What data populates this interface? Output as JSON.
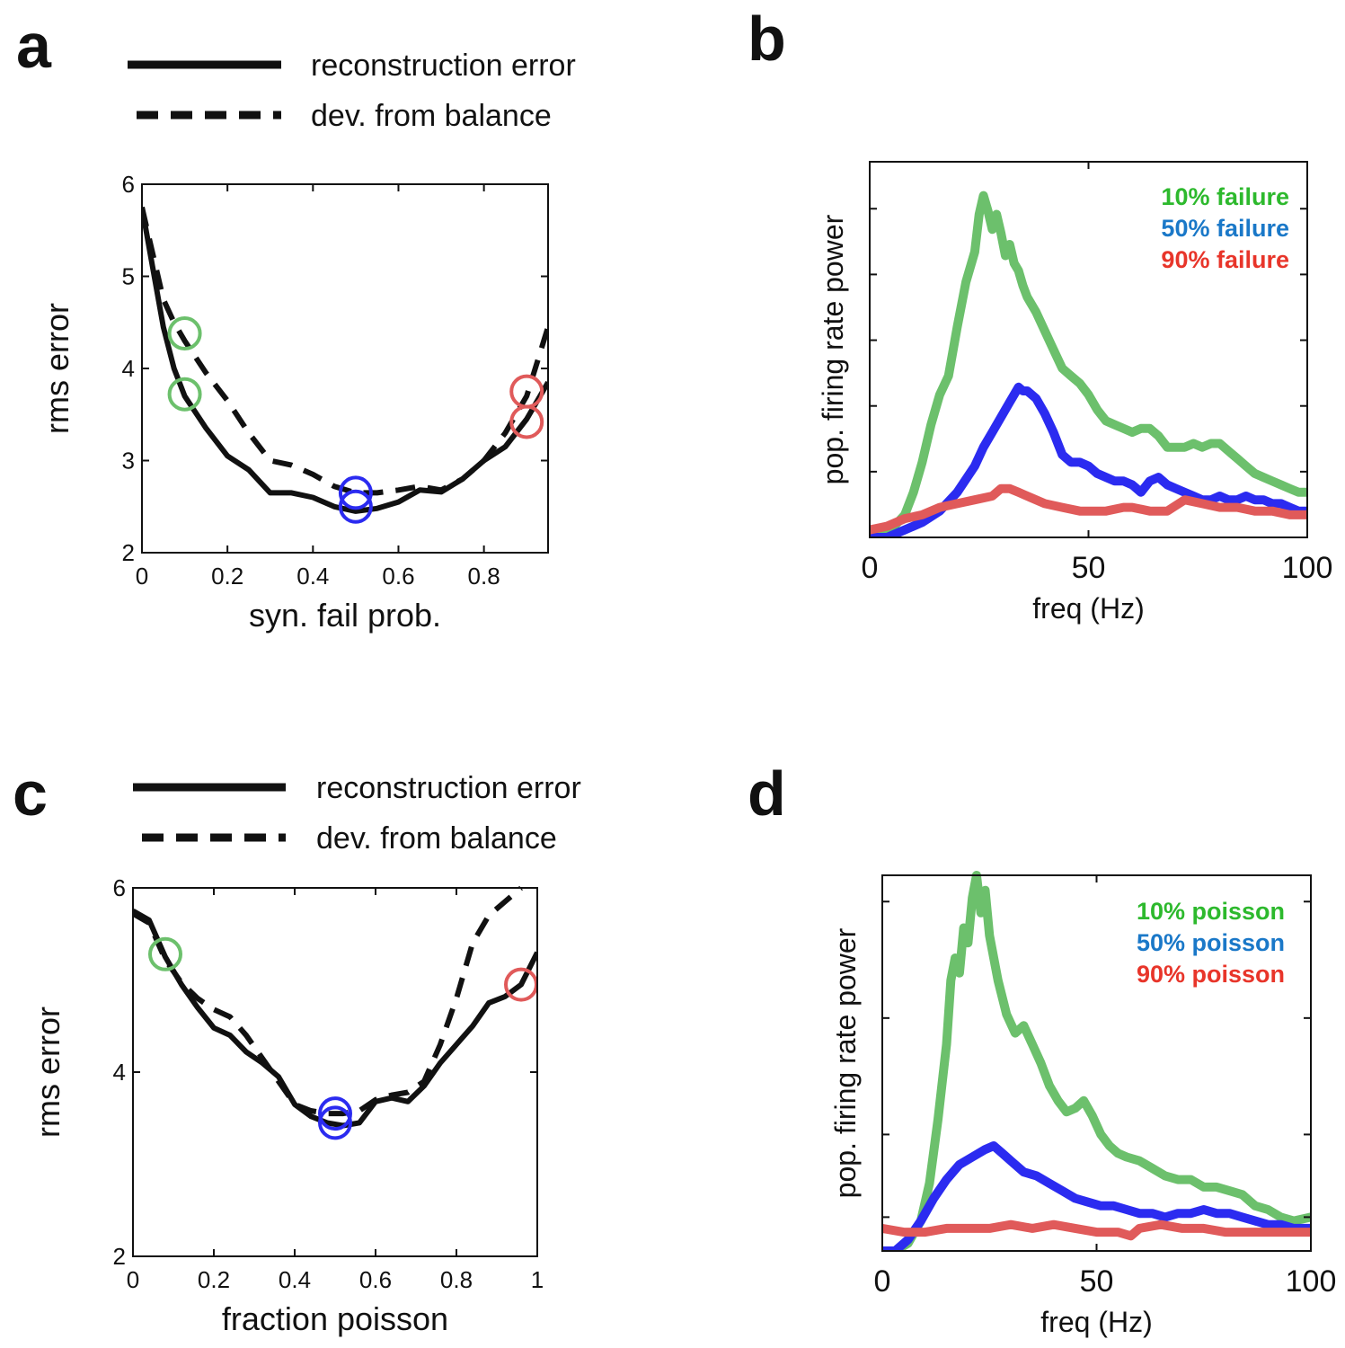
{
  "figure": {
    "panel_labels": [
      "a",
      "b",
      "c",
      "d"
    ],
    "colors": {
      "green": "#6cc06c",
      "blue": "#2b2bf0",
      "red": "#e05a5a",
      "black": "#111111",
      "legend_green": "#2db92d",
      "legend_blue": "#1a78c8",
      "legend_red": "#e8352a"
    }
  },
  "chart_data": [
    {
      "panel": "a",
      "type": "line",
      "xlabel": "syn. fail prob.",
      "ylabel": "rms error",
      "xlim": [
        0,
        0.95
      ],
      "ylim": [
        2,
        6
      ],
      "xticks": [
        0,
        0.2,
        0.4,
        0.6,
        0.8
      ],
      "xtick_labels": [
        "0",
        "0.2",
        "0.4",
        "0.6",
        "0.8"
      ],
      "yticks": [
        2,
        3,
        4,
        5,
        6
      ],
      "ytick_labels": [
        "2",
        "3",
        "4",
        "5",
        "6"
      ],
      "legend": [
        {
          "label": "reconstruction error",
          "style": "solid"
        },
        {
          "label": "dev. from balance",
          "style": "dashed"
        }
      ],
      "series": [
        {
          "name": "reconstruction error",
          "style": "solid",
          "x": [
            0,
            0.025,
            0.05,
            0.075,
            0.1,
            0.15,
            0.2,
            0.25,
            0.3,
            0.35,
            0.4,
            0.45,
            0.5,
            0.55,
            0.6,
            0.65,
            0.7,
            0.75,
            0.8,
            0.85,
            0.9,
            0.95
          ],
          "y": [
            5.75,
            5.1,
            4.45,
            4.0,
            3.7,
            3.35,
            3.05,
            2.9,
            2.65,
            2.65,
            2.6,
            2.5,
            2.45,
            2.48,
            2.55,
            2.68,
            2.66,
            2.8,
            3.0,
            3.15,
            3.45,
            3.85
          ]
        },
        {
          "name": "dev. from balance",
          "style": "dashed",
          "x": [
            0,
            0.025,
            0.05,
            0.075,
            0.1,
            0.15,
            0.2,
            0.25,
            0.3,
            0.35,
            0.4,
            0.45,
            0.5,
            0.55,
            0.6,
            0.65,
            0.7,
            0.75,
            0.8,
            0.85,
            0.9,
            0.95
          ],
          "y": [
            5.75,
            5.25,
            4.75,
            4.5,
            4.3,
            3.95,
            3.65,
            3.3,
            3.0,
            2.95,
            2.85,
            2.72,
            2.65,
            2.65,
            2.68,
            2.72,
            2.68,
            2.8,
            3.0,
            3.3,
            3.7,
            4.45
          ]
        }
      ],
      "markers": [
        {
          "x": 0.1,
          "y": 4.38,
          "color": "green"
        },
        {
          "x": 0.1,
          "y": 3.72,
          "color": "green"
        },
        {
          "x": 0.5,
          "y": 2.65,
          "color": "blue"
        },
        {
          "x": 0.5,
          "y": 2.5,
          "color": "blue"
        },
        {
          "x": 0.9,
          "y": 3.75,
          "color": "red"
        },
        {
          "x": 0.9,
          "y": 3.42,
          "color": "red"
        }
      ]
    },
    {
      "panel": "b",
      "type": "line",
      "xlabel": "freq (Hz)",
      "ylabel": "pop. firing rate power",
      "xlim": [
        0,
        100
      ],
      "ylim": [
        0,
        1
      ],
      "xticks": [
        0,
        50,
        100
      ],
      "xtick_labels": [
        "0",
        "50",
        "100"
      ],
      "yticks": [
        0.175,
        0.35,
        0.525,
        0.7,
        0.875
      ],
      "ytick_labels": [],
      "legend": [
        {
          "label": "10% failure",
          "color": "legend_green"
        },
        {
          "label": "50% failure",
          "color": "legend_blue"
        },
        {
          "label": "90% failure",
          "color": "legend_red"
        }
      ],
      "series": [
        {
          "name": "10% failure",
          "color": "green",
          "x": [
            0,
            4,
            8,
            10,
            12,
            14,
            16,
            18,
            20,
            22,
            24,
            25,
            26,
            27,
            28,
            29,
            30,
            31,
            32,
            33,
            34,
            35,
            36,
            38,
            40,
            42,
            44,
            46,
            48,
            50,
            52,
            54,
            56,
            58,
            60,
            62,
            64,
            66,
            68,
            70,
            72,
            74,
            76,
            78,
            80,
            82,
            84,
            86,
            88,
            90,
            92,
            94,
            96,
            98,
            100
          ],
          "y": [
            0.0,
            0.01,
            0.06,
            0.12,
            0.2,
            0.3,
            0.38,
            0.43,
            0.56,
            0.68,
            0.76,
            0.86,
            0.91,
            0.87,
            0.82,
            0.86,
            0.81,
            0.75,
            0.78,
            0.73,
            0.71,
            0.67,
            0.64,
            0.6,
            0.55,
            0.5,
            0.45,
            0.43,
            0.41,
            0.38,
            0.34,
            0.31,
            0.3,
            0.29,
            0.28,
            0.29,
            0.29,
            0.27,
            0.24,
            0.24,
            0.24,
            0.25,
            0.24,
            0.25,
            0.25,
            0.23,
            0.21,
            0.19,
            0.17,
            0.16,
            0.15,
            0.14,
            0.13,
            0.12,
            0.12
          ]
        },
        {
          "name": "50% failure",
          "color": "blue",
          "x": [
            0,
            4,
            8,
            12,
            16,
            20,
            24,
            26,
            28,
            30,
            32,
            33,
            34,
            35,
            36,
            38,
            40,
            42,
            44,
            46,
            48,
            50,
            52,
            54,
            56,
            58,
            60,
            62,
            64,
            66,
            68,
            70,
            72,
            74,
            76,
            78,
            80,
            82,
            84,
            86,
            88,
            90,
            92,
            94,
            96,
            98,
            100
          ],
          "y": [
            0.0,
            0.0,
            0.02,
            0.04,
            0.07,
            0.12,
            0.19,
            0.24,
            0.28,
            0.32,
            0.36,
            0.38,
            0.4,
            0.39,
            0.39,
            0.37,
            0.33,
            0.28,
            0.22,
            0.2,
            0.2,
            0.19,
            0.17,
            0.16,
            0.15,
            0.15,
            0.14,
            0.12,
            0.15,
            0.16,
            0.14,
            0.13,
            0.12,
            0.11,
            0.1,
            0.1,
            0.11,
            0.1,
            0.1,
            0.11,
            0.1,
            0.1,
            0.09,
            0.09,
            0.08,
            0.07,
            0.07
          ]
        },
        {
          "name": "90% failure",
          "color": "red",
          "x": [
            0,
            4,
            8,
            12,
            16,
            20,
            24,
            28,
            30,
            32,
            34,
            36,
            40,
            44,
            48,
            50,
            54,
            58,
            60,
            64,
            68,
            72,
            76,
            80,
            84,
            88,
            92,
            96,
            100
          ],
          "y": [
            0.02,
            0.03,
            0.05,
            0.06,
            0.08,
            0.09,
            0.1,
            0.11,
            0.13,
            0.13,
            0.12,
            0.11,
            0.09,
            0.08,
            0.07,
            0.07,
            0.07,
            0.08,
            0.08,
            0.07,
            0.07,
            0.1,
            0.09,
            0.08,
            0.08,
            0.07,
            0.07,
            0.06,
            0.06
          ]
        }
      ]
    },
    {
      "panel": "c",
      "type": "line",
      "xlabel": "fraction poisson",
      "ylabel": "rms error",
      "xlim": [
        0,
        1
      ],
      "ylim": [
        2,
        6
      ],
      "xticks": [
        0,
        0.2,
        0.4,
        0.6,
        0.8,
        1
      ],
      "xtick_labels": [
        "0",
        "0.2",
        "0.4",
        "0.6",
        "0.8",
        "1"
      ],
      "yticks": [
        2,
        4,
        6
      ],
      "ytick_labels": [
        "2",
        "4",
        "6"
      ],
      "legend": [
        {
          "label": "reconstruction error",
          "style": "solid"
        },
        {
          "label": "dev. from balance",
          "style": "dashed"
        }
      ],
      "series": [
        {
          "name": "reconstruction error",
          "style": "solid",
          "x": [
            0,
            0.04,
            0.08,
            0.12,
            0.16,
            0.2,
            0.24,
            0.28,
            0.32,
            0.36,
            0.4,
            0.44,
            0.48,
            0.52,
            0.56,
            0.6,
            0.64,
            0.68,
            0.72,
            0.76,
            0.8,
            0.84,
            0.88,
            0.92,
            0.96,
            1.0
          ],
          "y": [
            5.75,
            5.65,
            5.25,
            4.95,
            4.7,
            4.48,
            4.4,
            4.22,
            4.1,
            3.95,
            3.65,
            3.52,
            3.45,
            3.42,
            3.45,
            3.68,
            3.72,
            3.68,
            3.85,
            4.1,
            4.3,
            4.5,
            4.75,
            4.82,
            4.95,
            5.3
          ]
        },
        {
          "name": "dev. from balance",
          "style": "dashed",
          "x": [
            0,
            0.04,
            0.08,
            0.12,
            0.16,
            0.2,
            0.24,
            0.28,
            0.32,
            0.36,
            0.4,
            0.44,
            0.48,
            0.52,
            0.56,
            0.6,
            0.64,
            0.68,
            0.72,
            0.76,
            0.8,
            0.84,
            0.88,
            0.92,
            0.96
          ],
          "y": [
            5.72,
            5.62,
            5.22,
            4.97,
            4.8,
            4.68,
            4.6,
            4.4,
            4.15,
            3.9,
            3.65,
            3.58,
            3.55,
            3.55,
            3.58,
            3.7,
            3.75,
            3.78,
            3.9,
            4.3,
            4.8,
            5.4,
            5.7,
            5.85,
            6.0
          ]
        }
      ],
      "markers": [
        {
          "x": 0.08,
          "y": 5.28,
          "color": "green"
        },
        {
          "x": 0.5,
          "y": 3.55,
          "color": "blue"
        },
        {
          "x": 0.5,
          "y": 3.45,
          "color": "blue"
        },
        {
          "x": 0.96,
          "y": 4.95,
          "color": "red"
        }
      ]
    },
    {
      "panel": "d",
      "type": "line",
      "xlabel": "freq (Hz)",
      "ylabel": "pop. firing rate power",
      "xlim": [
        0,
        100
      ],
      "ylim": [
        0,
        1
      ],
      "xticks": [
        0,
        50,
        100
      ],
      "xtick_labels": [
        "0",
        "50",
        "100"
      ],
      "yticks": [
        0.09,
        0.31,
        0.62,
        0.93
      ],
      "ytick_labels": [],
      "legend": [
        {
          "label": "10% poisson",
          "color": "legend_green"
        },
        {
          "label": "50% poisson",
          "color": "legend_blue"
        },
        {
          "label": "90% poisson",
          "color": "legend_red"
        }
      ],
      "series": [
        {
          "name": "10% poisson",
          "color": "green",
          "x": [
            0,
            3,
            6,
            9,
            11,
            13,
            15,
            16,
            17,
            18,
            19,
            20,
            21,
            22,
            23,
            24,
            25,
            27,
            29,
            31,
            33,
            35,
            37,
            39,
            41,
            43,
            45,
            47,
            49,
            51,
            53,
            55,
            57,
            60,
            63,
            66,
            69,
            72,
            75,
            78,
            81,
            84,
            87,
            90,
            93,
            96,
            100
          ],
          "y": [
            0.0,
            0.0,
            0.02,
            0.08,
            0.18,
            0.35,
            0.55,
            0.72,
            0.78,
            0.74,
            0.86,
            0.82,
            0.94,
            1.0,
            0.9,
            0.96,
            0.84,
            0.72,
            0.63,
            0.58,
            0.6,
            0.55,
            0.5,
            0.44,
            0.4,
            0.37,
            0.38,
            0.4,
            0.36,
            0.31,
            0.28,
            0.26,
            0.25,
            0.24,
            0.22,
            0.2,
            0.19,
            0.19,
            0.17,
            0.17,
            0.16,
            0.15,
            0.12,
            0.11,
            0.09,
            0.08,
            0.09
          ]
        },
        {
          "name": "50% poisson",
          "color": "blue",
          "x": [
            0,
            3,
            6,
            9,
            12,
            15,
            18,
            21,
            24,
            26,
            28,
            30,
            33,
            36,
            39,
            42,
            45,
            48,
            51,
            54,
            57,
            60,
            63,
            66,
            69,
            72,
            75,
            78,
            81,
            84,
            87,
            90,
            93,
            96,
            100
          ],
          "y": [
            0.0,
            0.0,
            0.03,
            0.08,
            0.14,
            0.19,
            0.23,
            0.25,
            0.27,
            0.28,
            0.26,
            0.24,
            0.21,
            0.2,
            0.18,
            0.16,
            0.14,
            0.13,
            0.12,
            0.12,
            0.11,
            0.1,
            0.1,
            0.09,
            0.1,
            0.1,
            0.11,
            0.1,
            0.1,
            0.09,
            0.08,
            0.07,
            0.07,
            0.06,
            0.06
          ]
        },
        {
          "name": "90% poisson",
          "color": "red",
          "x": [
            0,
            5,
            10,
            15,
            20,
            25,
            30,
            35,
            40,
            45,
            50,
            55,
            58,
            60,
            65,
            70,
            75,
            80,
            85,
            90,
            95,
            100
          ],
          "y": [
            0.06,
            0.05,
            0.05,
            0.06,
            0.06,
            0.06,
            0.07,
            0.06,
            0.07,
            0.06,
            0.05,
            0.05,
            0.04,
            0.06,
            0.07,
            0.06,
            0.06,
            0.05,
            0.05,
            0.05,
            0.05,
            0.05
          ]
        }
      ]
    }
  ]
}
